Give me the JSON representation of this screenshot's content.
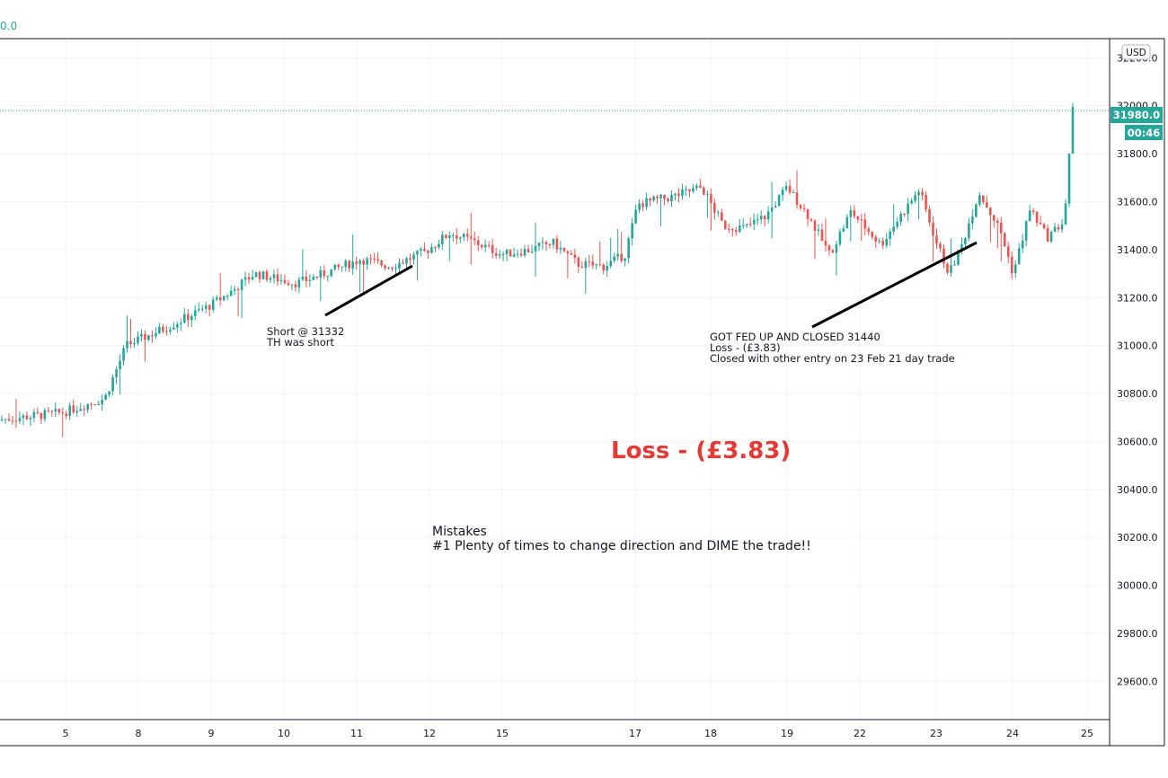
{
  "top_value": "0.0",
  "chart_data": {
    "type": "candlestick",
    "currency": "USD",
    "ylim": [
      29440,
      32280
    ],
    "y_ticks": [
      32200,
      32000,
      31800,
      31600,
      31400,
      31200,
      31000,
      30800,
      30600,
      30400,
      30200,
      30000,
      29800,
      29600
    ],
    "y_tick_labels": [
      "32200.0",
      "32000.0",
      "31800.0",
      "31600.0",
      "31400.0",
      "31200.0",
      "31000.0",
      "30800.0",
      "30600.0",
      "30400.0",
      "30200.0",
      "30000.0",
      "29800.0",
      "29600.0"
    ],
    "x_ticks": [
      "5",
      "8",
      "9",
      "10",
      "11",
      "12",
      "15",
      "17",
      "18",
      "19",
      "22",
      "23",
      "24",
      "25"
    ],
    "last_price": "31980.0",
    "countdown": "00:46",
    "price_path": [
      [
        0.0,
        30690
      ],
      [
        1.5,
        30720
      ],
      [
        2.5,
        30780
      ],
      [
        3.0,
        31000
      ],
      [
        4.0,
        31080
      ],
      [
        5.0,
        31170
      ],
      [
        5.5,
        31230
      ],
      [
        6.0,
        31300
      ],
      [
        7.0,
        31260
      ],
      [
        7.5,
        31290
      ],
      [
        8.5,
        31360
      ],
      [
        9.2,
        31330
      ],
      [
        10.0,
        31390
      ],
      [
        10.6,
        31470
      ],
      [
        11.2,
        31430
      ],
      [
        11.8,
        31380
      ],
      [
        12.5,
        31400
      ],
      [
        13.0,
        31430
      ],
      [
        13.6,
        31340
      ],
      [
        14.2,
        31330
      ],
      [
        14.7,
        31380
      ],
      [
        15.0,
        31590
      ],
      [
        15.8,
        31620
      ],
      [
        16.5,
        31660
      ],
      [
        17.0,
        31500
      ],
      [
        17.5,
        31490
      ],
      [
        18.0,
        31540
      ],
      [
        18.5,
        31660
      ],
      [
        19.0,
        31540
      ],
      [
        19.5,
        31380
      ],
      [
        20.0,
        31560
      ],
      [
        20.7,
        31420
      ],
      [
        21.0,
        31500
      ],
      [
        21.6,
        31650
      ],
      [
        22.0,
        31430
      ],
      [
        22.3,
        31300
      ],
      [
        22.6,
        31420
      ],
      [
        23.0,
        31640
      ],
      [
        23.5,
        31480
      ],
      [
        23.8,
        31300
      ],
      [
        24.2,
        31570
      ],
      [
        24.6,
        31450
      ],
      [
        25.0,
        31520
      ],
      [
        25.2,
        31980
      ]
    ],
    "annotations": {
      "short": [
        "Short @ 31332",
        "TH was short"
      ],
      "closed": [
        "GOT FED UP AND CLOSED 31440",
        "Loss - (£3.83)",
        "Closed with other entry on 23 Feb 21 day trade"
      ],
      "loss": "Loss - (£3.83)",
      "mistakes": [
        "Mistakes",
        "#1  Plenty of times to change direction and DIME the trade!!"
      ]
    },
    "colors": {
      "up": "#26a69a",
      "down": "#ef5350",
      "loss": "#e53935",
      "grid": "#f0f3fa"
    }
  }
}
